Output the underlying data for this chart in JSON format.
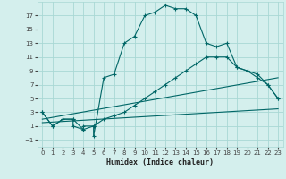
{
  "xlabel": "Humidex (Indice chaleur)",
  "bg_color": "#d4efed",
  "grid_color": "#a8d8d4",
  "line_color": "#006666",
  "xlim": [
    -0.5,
    23.5
  ],
  "ylim": [
    -2,
    19
  ],
  "xticks": [
    0,
    1,
    2,
    3,
    4,
    5,
    6,
    7,
    8,
    9,
    10,
    11,
    12,
    13,
    14,
    15,
    16,
    17,
    18,
    19,
    20,
    21,
    22,
    23
  ],
  "yticks": [
    -1,
    1,
    3,
    5,
    7,
    9,
    11,
    13,
    15,
    17
  ],
  "series1_x": [
    0,
    1,
    2,
    3,
    3,
    4,
    4,
    5,
    5,
    6,
    7,
    8,
    9,
    10,
    11,
    12,
    13,
    14,
    15,
    16,
    17,
    18,
    19,
    20,
    21,
    22,
    23
  ],
  "series1_y": [
    3,
    1,
    2,
    2,
    1,
    0.5,
    1,
    1,
    -0.5,
    8,
    8.5,
    13,
    14,
    17,
    17.5,
    18.5,
    18,
    18,
    17,
    13,
    12.5,
    13,
    9.5,
    9,
    8.5,
    7,
    5
  ],
  "series2_x": [
    0,
    1,
    2,
    3,
    4,
    5,
    6,
    7,
    8,
    9,
    10,
    11,
    12,
    13,
    14,
    15,
    16,
    17,
    18,
    19,
    20,
    21,
    22,
    23
  ],
  "series2_y": [
    3,
    1,
    2,
    2,
    0.5,
    1,
    2,
    2.5,
    3,
    4,
    5,
    6,
    7,
    8,
    9,
    10,
    11,
    11,
    11,
    9.5,
    9,
    8,
    7,
    5
  ],
  "series3_x": [
    0,
    23
  ],
  "series3_y": [
    1.5,
    3.5
  ],
  "series4_x": [
    0,
    23
  ],
  "series4_y": [
    2,
    8
  ]
}
